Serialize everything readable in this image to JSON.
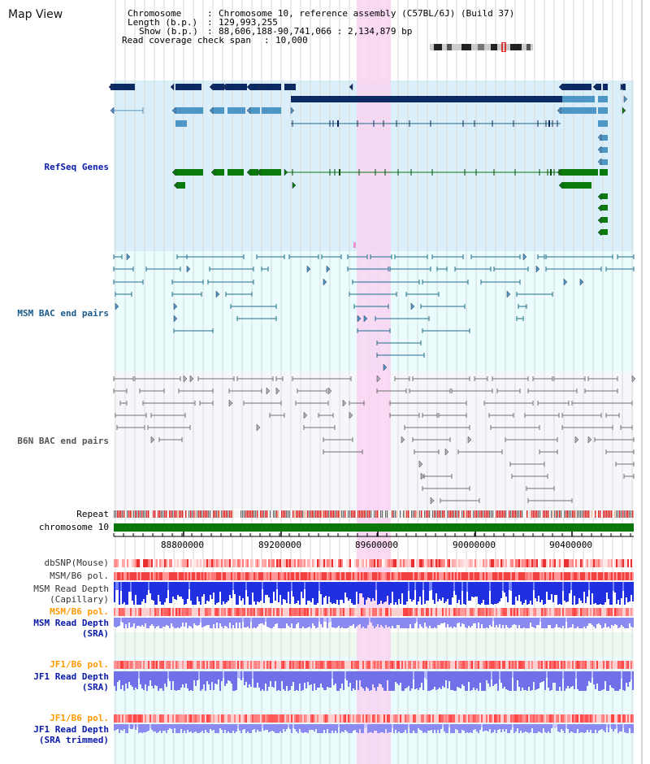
{
  "title": "Map View",
  "info": {
    "chromosome_label": "Chromosome",
    "chromosome_value": "Chromosome 10, reference assembly (C57BL/6J) (Build 37)",
    "length_label": "Length (b.p.)",
    "length_value": "129,993,255",
    "show_label": "Show (b.p.)",
    "show_value": "88,606,188-90,741,066 : 2,134,879 bp",
    "coverage_label": "Read coverage check span",
    "coverage_value": "10,000",
    "separator": ":"
  },
  "tracks": {
    "refseq": "RefSeq Genes",
    "msm_bac": "MSM BAC end pairs",
    "b6n_bac": "B6N BAC end pairs",
    "repeat": "Repeat",
    "chromosome": "chromosome 10",
    "dbsnp": "dbSNP(Mouse)",
    "msm_b6_pol_1": "MSM/B6 pol.",
    "msm_read_depth_cap_1": "MSM Read Depth",
    "msm_read_depth_cap_2": "(Capillary)",
    "msm_b6_pol_2": "MSM/B6 pol.",
    "msm_read_depth_sra_1": "MSM Read Depth",
    "msm_read_depth_sra_2": "(SRA)",
    "jf1_b6_pol_1": "JF1/B6 pol.",
    "jf1_read_depth_sra_1": "JF1 Read Depth",
    "jf1_read_depth_sra_2": "(SRA)",
    "jf1_b6_pol_2": "JF1/B6 pol.",
    "jf1_read_depth_trim_1": "JF1 Read Depth",
    "jf1_read_depth_trim_2": "(SRA trimmed)"
  },
  "axis": {
    "ticks": [
      "88800000",
      "89200000",
      "89600000",
      "90000000",
      "90400000"
    ]
  },
  "colors": {
    "refseq_bg": "#daeff9",
    "msm_bg": "#eafcfb",
    "b6n_bg": "#f6f7fb",
    "highlight": "#f9d3f1",
    "dark_blue": "#0b2a63",
    "mid_blue": "#4e96c3",
    "green": "#0a7a0a",
    "msm_line": "#1f6e8c",
    "b6n_line": "#707070",
    "label_blue": "#0a1aa8",
    "label_teal": "#1a5a8a",
    "label_orange": "#ff9900",
    "label_gray": "#444444"
  }
}
